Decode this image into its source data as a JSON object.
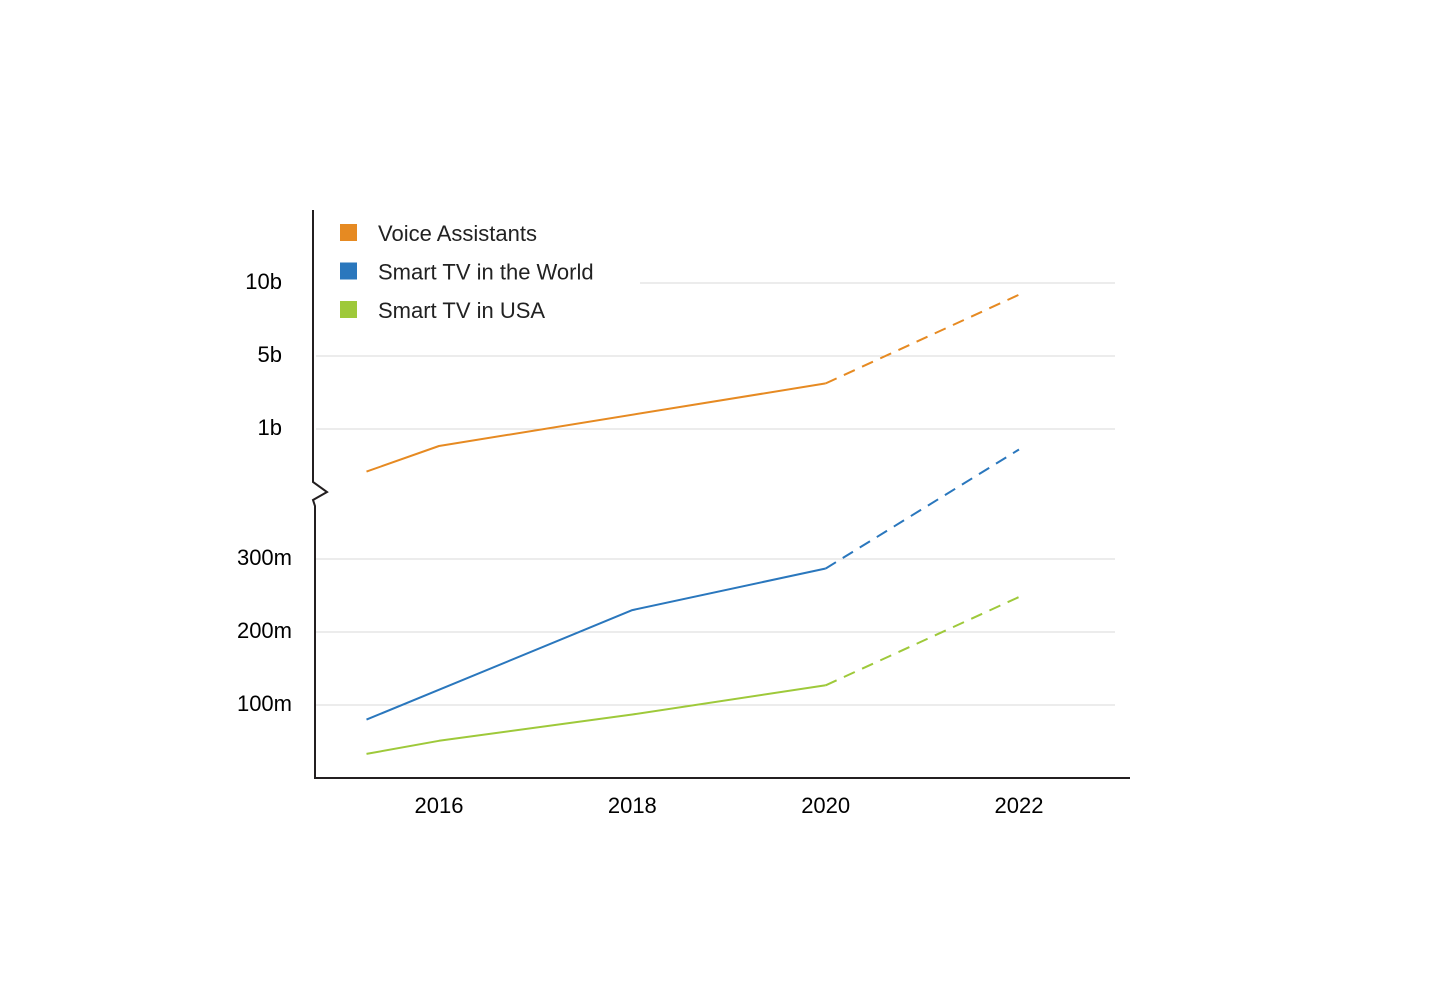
{
  "chart_data": {
    "type": "line",
    "title": "",
    "xlabel": "",
    "ylabel": "",
    "axis_break": true,
    "grid": true,
    "legend_position": "top-left",
    "x_ticks": [
      "2016",
      "2018",
      "2020",
      "2022"
    ],
    "xlim": [
      2015.25,
      2022.9
    ],
    "y_upper": {
      "ticks": [
        {
          "label": "1b",
          "value": 1000000000
        },
        {
          "label": "5b",
          "value": 5000000000
        },
        {
          "label": "10b",
          "value": 10000000000
        }
      ]
    },
    "y_lower": {
      "ylim": [
        0,
        300000000
      ],
      "ticks": [
        {
          "label": "100m",
          "value": 100000000
        },
        {
          "label": "200m",
          "value": 200000000
        },
        {
          "label": "300m",
          "value": 300000000
        }
      ]
    },
    "series": [
      {
        "name": "Voice Assistants",
        "color": "#e68a22",
        "panel": "upper",
        "actual": [
          {
            "x": 2015.25,
            "y": 400000000
          },
          {
            "x": 2016.0,
            "y": 760000000
          },
          {
            "x": 2020.0,
            "y": 3500000000
          }
        ],
        "projected": [
          {
            "x": 2020.0,
            "y": 3500000000
          },
          {
            "x": 2022.0,
            "y": 9200000000
          }
        ]
      },
      {
        "name": "Smart TV in the World",
        "color": "#2a77bd",
        "panel": "lower",
        "actual": [
          {
            "x": 2015.25,
            "y": 80000000
          },
          {
            "x": 2018.0,
            "y": 230000000
          },
          {
            "x": 2020.0,
            "y": 287000000
          }
        ],
        "projected": [
          {
            "x": 2020.0,
            "y": 287000000
          },
          {
            "x": 2022.0,
            "y": 450000000
          }
        ]
      },
      {
        "name": "Smart TV in USA",
        "color": "#9ec93a",
        "panel": "lower",
        "actual": [
          {
            "x": 2015.25,
            "y": 33000000
          },
          {
            "x": 2016.0,
            "y": 51000000
          },
          {
            "x": 2018.0,
            "y": 87000000
          },
          {
            "x": 2020.0,
            "y": 127000000
          }
        ],
        "projected": [
          {
            "x": 2020.0,
            "y": 127000000
          },
          {
            "x": 2022.0,
            "y": 248000000
          }
        ]
      }
    ]
  }
}
